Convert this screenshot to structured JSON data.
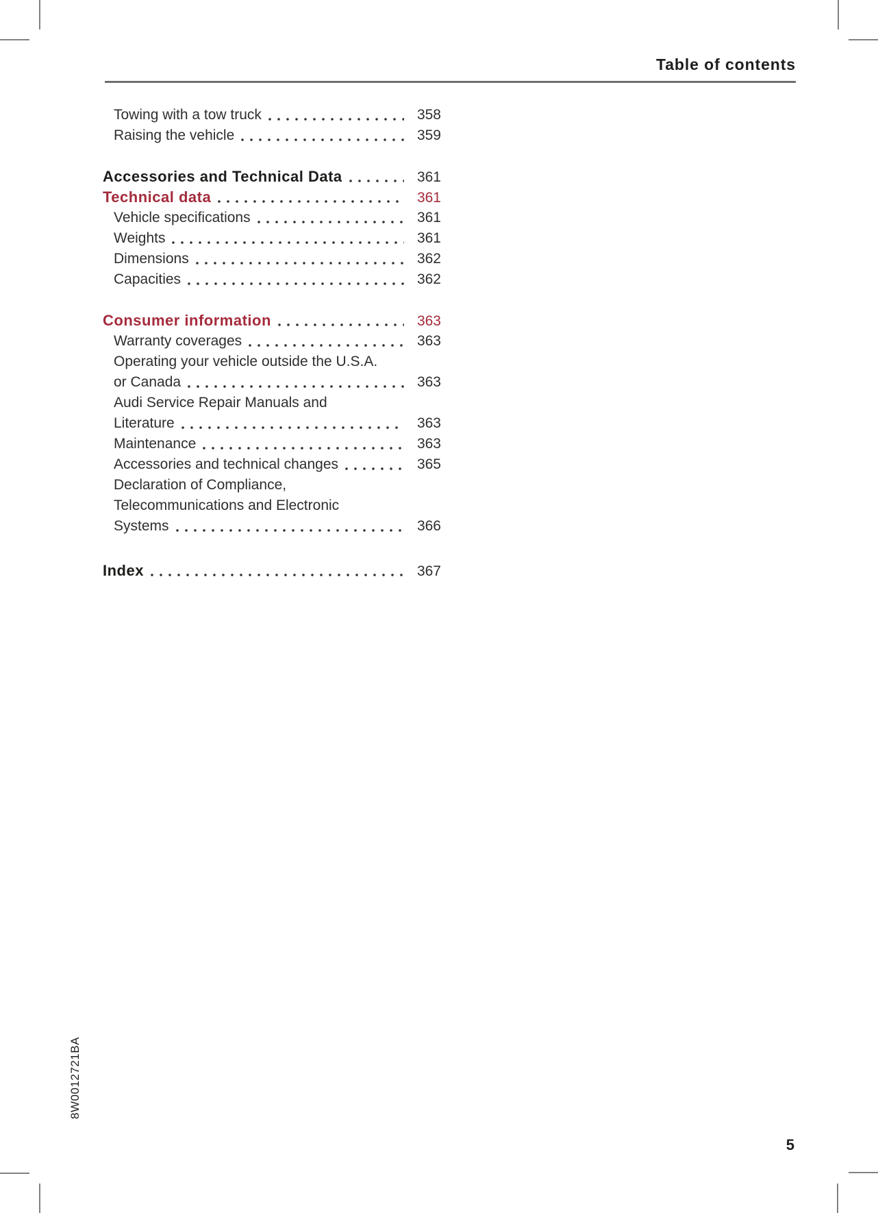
{
  "header": {
    "title": "Table of contents"
  },
  "toc": {
    "rows": [
      {
        "label": "Towing with a tow truck",
        "page": "358",
        "style": "sub"
      },
      {
        "label": "Raising the vehicle",
        "page": "359",
        "style": "sub"
      },
      {
        "label": "Accessories and Technical Data",
        "page": "361",
        "style": "section",
        "gap": true
      },
      {
        "label": "Technical data",
        "page": "361",
        "style": "section-red"
      },
      {
        "label": "Vehicle specifications",
        "page": "361",
        "style": "sub"
      },
      {
        "label": "Weights",
        "page": "361",
        "style": "sub"
      },
      {
        "label": "Dimensions",
        "page": "362",
        "style": "sub"
      },
      {
        "label": "Capacities",
        "page": "362",
        "style": "sub"
      },
      {
        "label": "Consumer information",
        "page": "363",
        "style": "section-red",
        "gap": true
      },
      {
        "label": "Warranty coverages",
        "page": "363",
        "style": "sub"
      },
      {
        "label": "Operating your vehicle outside the U.S.A.",
        "page": "",
        "style": "sub"
      },
      {
        "label": "or Canada",
        "page": "363",
        "style": "sub"
      },
      {
        "label": "Audi Service Repair Manuals and",
        "page": "",
        "style": "sub"
      },
      {
        "label": "Literature",
        "page": "363",
        "style": "sub"
      },
      {
        "label": "Maintenance",
        "page": "363",
        "style": "sub"
      },
      {
        "label": "Accessories and technical changes",
        "page": "365",
        "style": "sub"
      },
      {
        "label": "Declaration of Compliance,",
        "page": "",
        "style": "sub"
      },
      {
        "label": "Telecommunications and Electronic",
        "page": "",
        "style": "sub"
      },
      {
        "label": "Systems",
        "page": "366",
        "style": "sub"
      },
      {
        "label": "Index",
        "page": "367",
        "style": "section",
        "gap_lg": true
      }
    ]
  },
  "footer": {
    "part_number": "8W0012721BA",
    "page_number": "5"
  },
  "colors": {
    "accent_red": "#a52b3c",
    "text": "#2e2e2e",
    "heading": "#1d1d1b",
    "rule": "#6f6f6e"
  }
}
